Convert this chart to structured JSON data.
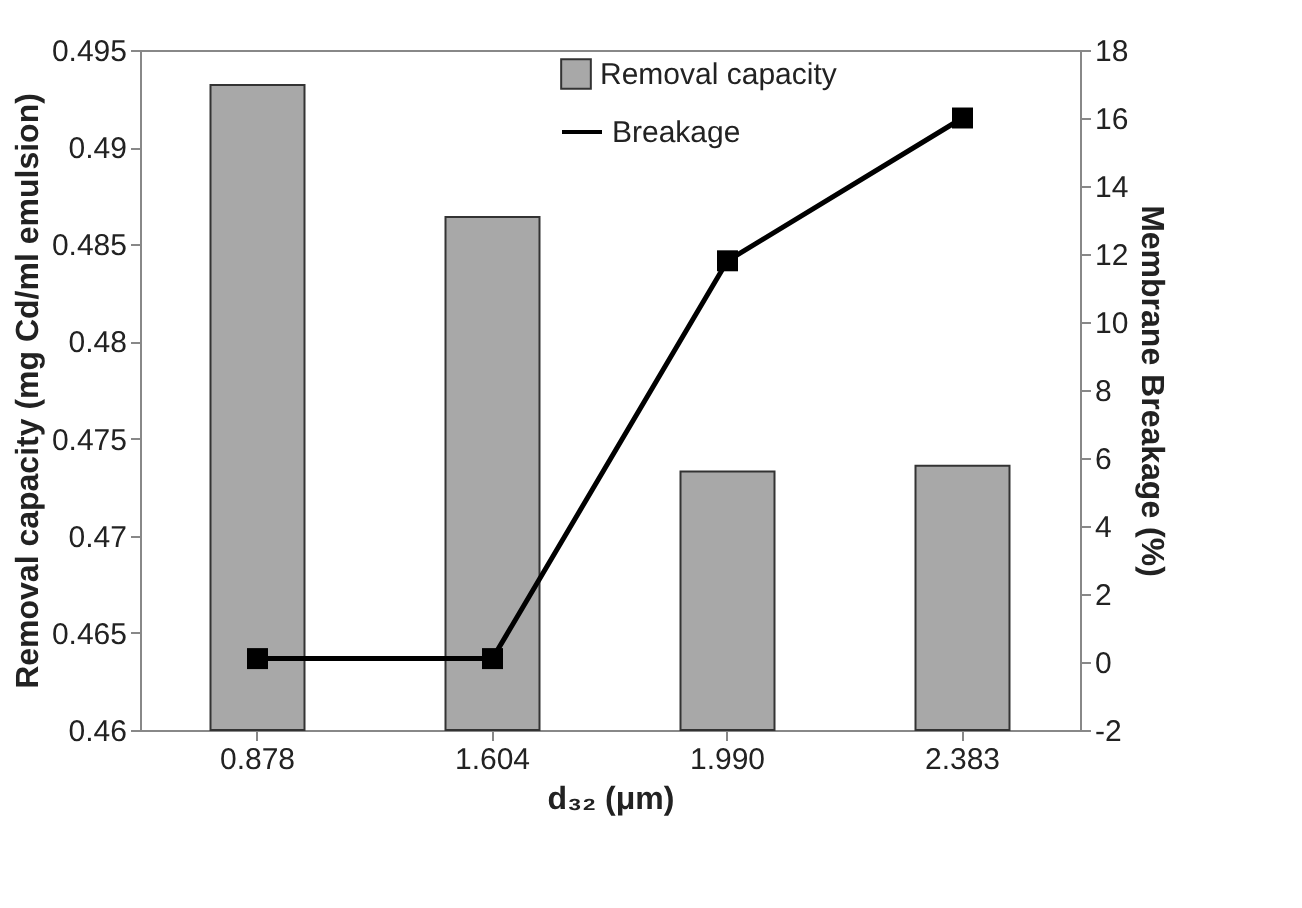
{
  "chart_data": {
    "type": "bar",
    "xlabel": "d₃₂ (μm)",
    "ylabel": "Removal capacity (mg Cd/ml emulsion)",
    "y2label": "Membrane Breakage (%)",
    "categories": [
      "0.878",
      "1.604",
      "1.990",
      "2.383"
    ],
    "series": [
      {
        "name": "Removal capacity",
        "color": "#a8a8a8",
        "values": [
          0.4932,
          0.4864,
          0.4733,
          0.4736
        ]
      },
      {
        "name": "Breakage",
        "type": "line",
        "axis": "y2",
        "color": "#000000",
        "marker": "square",
        "values": [
          0.1,
          0.1,
          11.8,
          16.0
        ]
      }
    ],
    "ylim": [
      0.46,
      0.495
    ],
    "yticks": [
      0.46,
      0.465,
      0.47,
      0.475,
      0.48,
      0.485,
      0.49,
      0.495
    ],
    "y2lim": [
      -2,
      18
    ],
    "y2ticks": [
      -2,
      0,
      2,
      4,
      6,
      8,
      10,
      12,
      14,
      16,
      18
    ],
    "grid": false,
    "legend": "top"
  }
}
